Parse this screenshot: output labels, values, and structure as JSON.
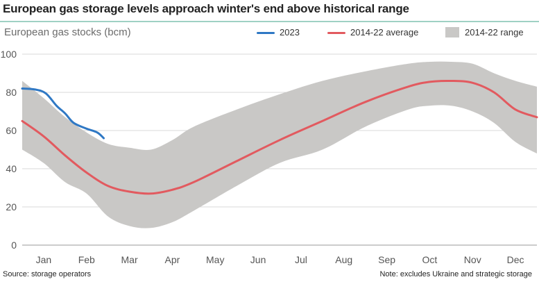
{
  "chart_data": {
    "type": "line",
    "title": "European gas storage levels approach winter's end above historical range",
    "subtitle": "European gas stocks (bcm)",
    "ylim": [
      0,
      100
    ],
    "yticks": [
      0,
      20,
      40,
      60,
      80,
      100
    ],
    "xticks": [
      "Jan",
      "Feb",
      "Mar",
      "Apr",
      "May",
      "Jun",
      "Jul",
      "Aug",
      "Sep",
      "Oct",
      "Nov",
      "Dec"
    ],
    "grid": true,
    "legend_position": "top-right",
    "series": [
      {
        "name": "2023",
        "color": "#2f78c4",
        "x": [
          0,
          0.3,
          0.55,
          0.8,
          1.0,
          1.2,
          1.5,
          1.75,
          1.9
        ],
        "values": [
          82,
          81.5,
          79.5,
          73,
          69,
          64,
          61,
          59,
          56
        ]
      },
      {
        "name": "2014-22 average",
        "color": "#e25a5f",
        "x": [
          0,
          0.5,
          1,
          1.5,
          2,
          2.5,
          3,
          3.5,
          4,
          5,
          6,
          7,
          8,
          9,
          9.5,
          10,
          10.5,
          11,
          11.5,
          12
        ],
        "values": [
          65,
          57,
          47,
          38,
          31,
          28,
          27,
          29,
          33,
          44,
          55,
          65,
          75,
          83,
          85.5,
          86,
          85,
          80,
          71,
          67
        ]
      },
      {
        "name": "2014-22 range",
        "color": "#c9c8c6",
        "x": [
          0,
          0.5,
          1,
          1.5,
          2,
          2.5,
          3,
          3.5,
          4,
          5,
          6,
          7,
          8,
          9,
          9.5,
          10,
          10.5,
          11,
          11.5,
          12
        ],
        "upper": [
          86,
          77,
          67,
          59,
          53,
          51,
          50,
          55,
          62,
          71,
          79,
          86,
          91,
          95,
          96,
          96,
          95,
          90,
          86,
          83
        ],
        "lower": [
          50,
          43,
          33,
          27,
          15,
          10,
          9,
          12,
          18,
          31,
          43,
          50,
          62,
          71,
          73,
          73,
          70,
          64,
          54,
          48
        ]
      }
    ]
  },
  "legend": {
    "items": [
      {
        "label": "2023",
        "color": "#2f78c4"
      },
      {
        "label": "2014-22 average",
        "color": "#e25a5f"
      },
      {
        "label": "2014-22 range",
        "color": "#c9c8c6"
      }
    ]
  },
  "footer": {
    "source": "Source: storage operators",
    "note": "Note: excludes Ukraine and strategic storage"
  }
}
